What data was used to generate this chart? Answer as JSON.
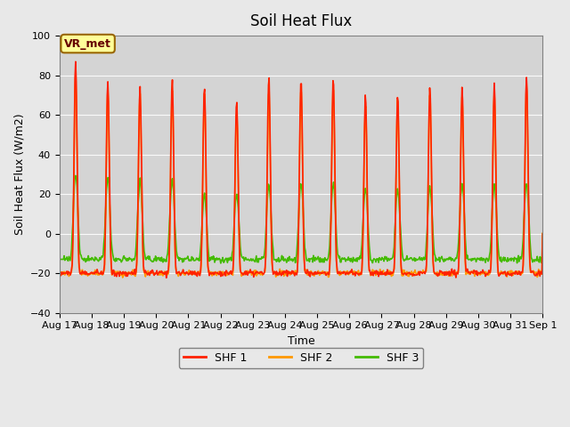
{
  "title": "Soil Heat Flux",
  "ylabel": "Soil Heat Flux (W/m2)",
  "xlabel": "Time",
  "annotation": "VR_met",
  "ylim": [
    -40,
    100
  ],
  "yticks": [
    -40,
    -20,
    0,
    20,
    40,
    60,
    80,
    100
  ],
  "background_color": "#e8e8e8",
  "plot_bg_color": "#d8d8d8",
  "line_colors": {
    "SHF 1": "#ff2200",
    "SHF 2": "#ff9900",
    "SHF 3": "#44bb00"
  },
  "legend_labels": [
    "SHF 1",
    "SHF 2",
    "SHF 3"
  ],
  "x_tick_labels": [
    "Aug 17",
    "Aug 18",
    "Aug 19",
    "Aug 20",
    "Aug 21",
    "Aug 22",
    "Aug 23",
    "Aug 24",
    "Aug 25",
    "Aug 26",
    "Aug 27",
    "Aug 28",
    "Aug 29",
    "Aug 30",
    "Aug 31",
    "Sep 1"
  ],
  "n_days": 15,
  "points_per_day": 48
}
